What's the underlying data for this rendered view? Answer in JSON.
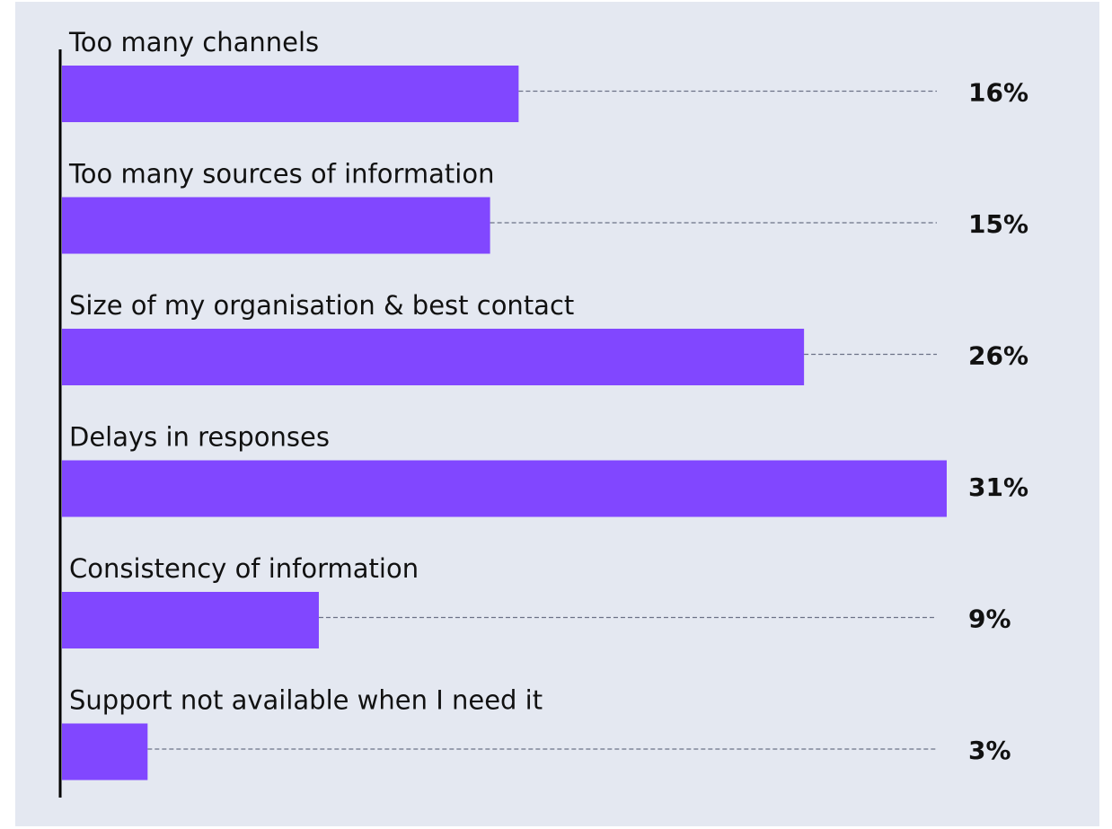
{
  "chart_data": {
    "type": "bar",
    "orientation": "horizontal",
    "title": "",
    "xlabel": "",
    "ylabel": "",
    "categories": [
      "Too many channels",
      "Too many sources of information",
      "Size of my organisation & best contact",
      "Delays in responses",
      "Consistency of information",
      "Support not available when I need it"
    ],
    "values": [
      16,
      15,
      26,
      31,
      9,
      3
    ],
    "value_labels": [
      "16%",
      "15%",
      "26%",
      "31%",
      "9%",
      "3%"
    ],
    "unit": "%",
    "xlim": [
      0,
      31
    ],
    "grid": false,
    "legend": "none",
    "colors": {
      "bar": "#8147ff",
      "background": "#e4e8f1",
      "leader_line": "#6b7186",
      "axis": "#000000",
      "text": "#111111"
    }
  }
}
